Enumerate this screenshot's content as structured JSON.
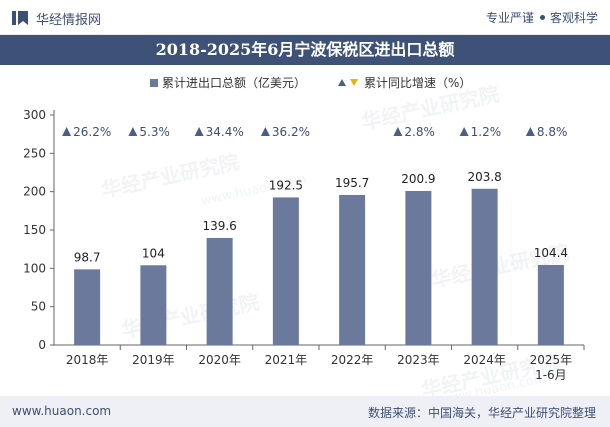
{
  "header": {
    "brand": "华经情报网",
    "right_label_1": "专业严谨",
    "right_label_2": "客观科学",
    "brand_icon": "bookmark-flag-icon"
  },
  "title": "2018-2025年6月宁波保税区进出口总额",
  "legend": {
    "series_bar": "累计进出口总额（亿美元）",
    "series_growth": "累计同比增速（%）"
  },
  "watermark": {
    "text": "华经产业研究院",
    "url": "www.huaon.com"
  },
  "footer": {
    "website": "www.huaon.com",
    "source": "数据来源：中国海关，华经产业研究院整理"
  },
  "colors": {
    "bar": "#6b7a9c",
    "title_band": "#3e5277",
    "growth_marker": "#4a5f86",
    "growth_text": "#3d4f75"
  },
  "chart_data": {
    "type": "bar",
    "categories": [
      "2018年",
      "2019年",
      "2020年",
      "2021年",
      "2022年",
      "2023年",
      "2024年",
      "2025年\n1-6月"
    ],
    "series": [
      {
        "name": "累计进出口总额（亿美元）",
        "values": [
          98.7,
          104,
          139.6,
          192.5,
          195.7,
          200.9,
          203.8,
          104.4
        ]
      },
      {
        "name": "累计同比增速（%）",
        "values": [
          26.2,
          5.3,
          34.4,
          36.2,
          null,
          2.8,
          1.2,
          8.8
        ]
      }
    ],
    "growth_labels": [
      "26.2%",
      "5.3%",
      "34.4%",
      "36.2%",
      "",
      "2.8%",
      "1.2%",
      "8.8%"
    ],
    "value_labels": [
      "98.7",
      "104",
      "139.6",
      "192.5",
      "195.7",
      "200.9",
      "203.8",
      "104.4"
    ],
    "yticks": [
      0,
      50,
      100,
      150,
      200,
      250,
      300
    ],
    "ylim": [
      0,
      300
    ],
    "grid": false,
    "legend_position": "top-center"
  }
}
